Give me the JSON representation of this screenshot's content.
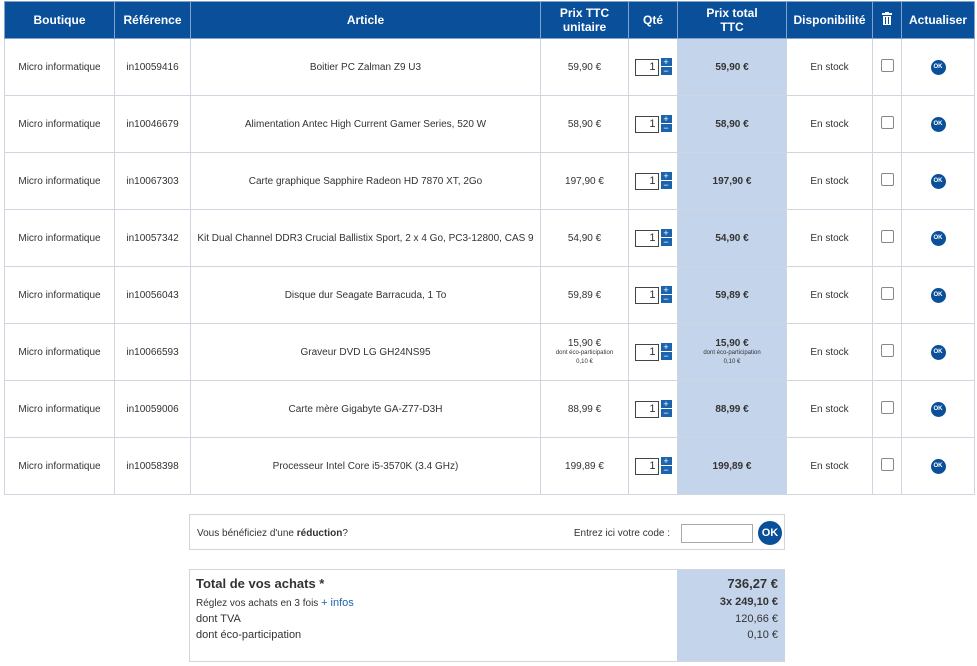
{
  "table": {
    "headers": {
      "boutique": "Boutique",
      "reference": "Référence",
      "article": "Article",
      "unit_price_1": "Prix TTC",
      "unit_price_2": "unitaire",
      "qty": "Qté",
      "total_1": "Prix total",
      "total_2": "TTC",
      "availability": "Disponibilité",
      "trash_icon": "trash-icon",
      "update": "Actualiser"
    },
    "rows": [
      {
        "boutique": "Micro informatique",
        "ref": "in10059416",
        "article": "Boitier PC Zalman Z9 U3",
        "unit": "59,90 €",
        "qty": "1",
        "total": "59,90 €",
        "stock": "En stock",
        "eco_label": "",
        "eco_value": ""
      },
      {
        "boutique": "Micro informatique",
        "ref": "in10046679",
        "article": "Alimentation Antec High Current Gamer Series, 520 W",
        "unit": "58,90 €",
        "qty": "1",
        "total": "58,90 €",
        "stock": "En stock",
        "eco_label": "",
        "eco_value": ""
      },
      {
        "boutique": "Micro informatique",
        "ref": "in10067303",
        "article": "Carte graphique Sapphire Radeon HD 7870 XT, 2Go",
        "unit": "197,90 €",
        "qty": "1",
        "total": "197,90 €",
        "stock": "En stock",
        "eco_label": "",
        "eco_value": ""
      },
      {
        "boutique": "Micro informatique",
        "ref": "in10057342",
        "article": "Kit Dual Channel DDR3 Crucial Ballistix Sport, 2 x 4 Go, PC3-12800, CAS 9",
        "unit": "54,90 €",
        "qty": "1",
        "total": "54,90 €",
        "stock": "En stock",
        "eco_label": "",
        "eco_value": ""
      },
      {
        "boutique": "Micro informatique",
        "ref": "in10056043",
        "article": "Disque dur Seagate Barracuda, 1 To",
        "unit": "59,89 €",
        "qty": "1",
        "total": "59,89 €",
        "stock": "En stock",
        "eco_label": "",
        "eco_value": ""
      },
      {
        "boutique": "Micro informatique",
        "ref": "in10066593",
        "article": "Graveur DVD LG GH24NS95",
        "unit": "15,90 €",
        "qty": "1",
        "total": "15,90 €",
        "stock": "En stock",
        "eco_label": "dont éco-participation",
        "eco_value": "0,10 €"
      },
      {
        "boutique": "Micro informatique",
        "ref": "in10059006",
        "article": "Carte mère Gigabyte GA-Z77-D3H",
        "unit": "88,99 €",
        "qty": "1",
        "total": "88,99 €",
        "stock": "En stock",
        "eco_label": "",
        "eco_value": ""
      },
      {
        "boutique": "Micro informatique",
        "ref": "in10058398",
        "article": "Processeur Intel Core i5-3570K (3.4 GHz)",
        "unit": "199,89 €",
        "qty": "1",
        "total": "199,89 €",
        "stock": "En stock",
        "eco_label": "",
        "eco_value": ""
      }
    ],
    "ok_label": "OK",
    "plus": "+",
    "minus": "−"
  },
  "promo": {
    "text_pre": "Vous bénéficiez d'une ",
    "text_bold": "réduction",
    "text_post": "?",
    "code_label": "Entrez ici votre code :",
    "ok_label": "OK"
  },
  "totals": {
    "title": "Total de vos achats *",
    "title_value": "736,27 €",
    "installments": "Réglez vos achats en 3 fois ",
    "installments_link": "+ infos",
    "installments_value": "3x  249,10 €",
    "vat_label": "dont TVA",
    "vat_value": "120,66 €",
    "eco_label": "dont éco-participation",
    "eco_value": "0,10 €"
  },
  "colors": {
    "header_bg": "#0a4f9a",
    "total_column_bg": "#c4d4ea",
    "button_bg": "#0a4f9a"
  }
}
